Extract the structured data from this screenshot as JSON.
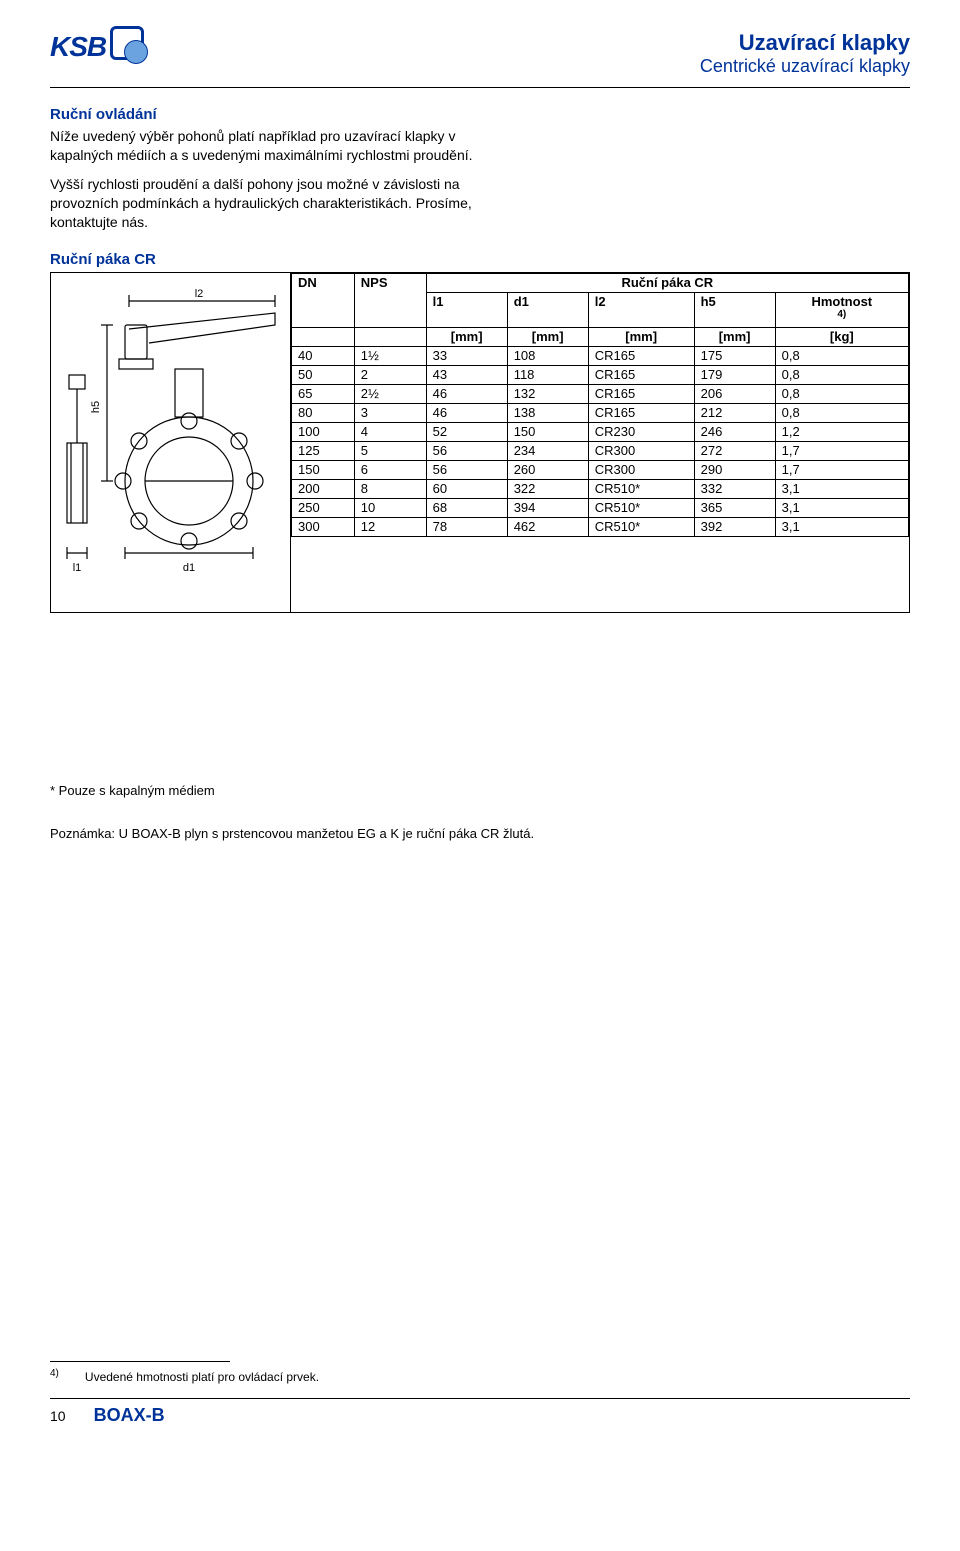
{
  "header": {
    "logo_text": "KSB",
    "title_main": "Uzavírací klapky",
    "title_sub": "Centrické uzavírací klapky"
  },
  "section1": {
    "heading": "Ruční ovládání",
    "para1": "Níže uvedený výběr pohonů platí například pro uzavírací klapky v kapalných médiích a s uvedenými maximálními rychlostmi proudění.",
    "para2": "Vyšší rychlosti proudění a další pohony jsou možné v závislosti na provozních podmínkách a hydraulických charakteristikách. Prosíme, kontaktujte nás."
  },
  "table_block": {
    "heading": "Ruční páka CR",
    "col_dn": "DN",
    "col_nps": "NPS",
    "col_group": "Ruční páka CR",
    "col_l1": "l1",
    "col_d1": "d1",
    "col_l2": "l2",
    "col_h5": "h5",
    "col_wt": "Hmotnost",
    "col_wt_fn": "4)",
    "unit_mm": "[mm]",
    "unit_kg": "[kg]",
    "rows": [
      {
        "dn": "40",
        "nps": "1½",
        "l1": "33",
        "d1": "108",
        "l2": "CR165",
        "h5": "175",
        "wt": "0,8"
      },
      {
        "dn": "50",
        "nps": "2",
        "l1": "43",
        "d1": "118",
        "l2": "CR165",
        "h5": "179",
        "wt": "0,8"
      },
      {
        "dn": "65",
        "nps": "2½",
        "l1": "46",
        "d1": "132",
        "l2": "CR165",
        "h5": "206",
        "wt": "0,8"
      },
      {
        "dn": "80",
        "nps": "3",
        "l1": "46",
        "d1": "138",
        "l2": "CR165",
        "h5": "212",
        "wt": "0,8"
      },
      {
        "dn": "100",
        "nps": "4",
        "l1": "52",
        "d1": "150",
        "l2": "CR230",
        "h5": "246",
        "wt": "1,2"
      },
      {
        "dn": "125",
        "nps": "5",
        "l1": "56",
        "d1": "234",
        "l2": "CR300",
        "h5": "272",
        "wt": "1,7"
      },
      {
        "dn": "150",
        "nps": "6",
        "l1": "56",
        "d1": "260",
        "l2": "CR300",
        "h5": "290",
        "wt": "1,7"
      },
      {
        "dn": "200",
        "nps": "8",
        "l1": "60",
        "d1": "322",
        "l2": "CR510*",
        "h5": "332",
        "wt": "3,1"
      },
      {
        "dn": "250",
        "nps": "10",
        "l1": "68",
        "d1": "394",
        "l2": "CR510*",
        "h5": "365",
        "wt": "3,1"
      },
      {
        "dn": "300",
        "nps": "12",
        "l1": "78",
        "d1": "462",
        "l2": "CR510*",
        "h5": "392",
        "wt": "3,1"
      }
    ],
    "diagram_labels": {
      "l2": "l2",
      "h5": "h5",
      "l1": "l1",
      "d1": "d1"
    }
  },
  "notes": {
    "star": "* Pouze s kapalným médiem",
    "remark": "Poznámka: U BOAX-B plyn s prstencovou manžetou EG a K je ruční páka CR žlutá."
  },
  "footnote": {
    "mark": "4)",
    "text": "Uvedené hmotnosti platí pro ovládací prvek."
  },
  "footer": {
    "page": "10",
    "product": "BOAX-B"
  },
  "style": {
    "brand_color": "#003399",
    "text_color": "#000000",
    "bg_color": "#ffffff"
  }
}
